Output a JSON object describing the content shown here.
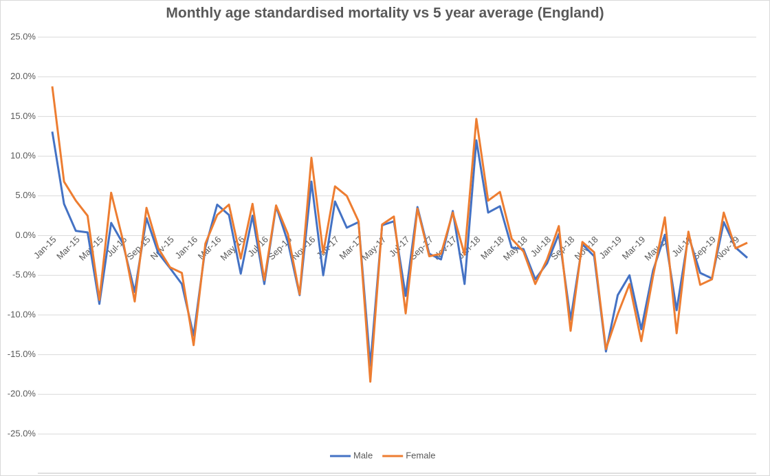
{
  "chart_data": {
    "type": "line",
    "title": "Monthly age standardised mortality vs 5 year average (England)",
    "categories": [
      "Jan-15",
      null,
      "Mar-15",
      null,
      "May-15",
      null,
      "Jul-15",
      null,
      "Sep-15",
      null,
      "Nov-15",
      null,
      "Jan-16",
      null,
      "Mar-16",
      null,
      "May-16",
      null,
      "Jul-16",
      null,
      "Sep-16",
      null,
      "Nov-16",
      null,
      "Jan-17",
      null,
      "Mar-17",
      null,
      "May-17",
      null,
      "Jul-17",
      null,
      "Sep-17",
      null,
      "Nov-17",
      null,
      "Jan-18",
      null,
      "Mar-18",
      null,
      "May-18",
      null,
      "Jul-18",
      null,
      "Sep-18",
      null,
      "Nov-18",
      null,
      "Jan-19",
      null,
      "Mar-19",
      null,
      "May-19",
      null,
      "Jul-19",
      null,
      "Sep-19",
      null,
      "Nov-19",
      null
    ],
    "series": [
      {
        "name": "Male",
        "color": "#4472c4",
        "values": [
          13.1,
          4.0,
          0.6,
          0.4,
          -8.6,
          1.6,
          -1.0,
          -7.1,
          2.2,
          -2.2,
          -4.1,
          -6.1,
          -12.6,
          -1.5,
          3.9,
          2.6,
          -4.8,
          2.5,
          -6.1,
          3.7,
          -0.8,
          -7.5,
          6.8,
          -5.0,
          4.3,
          1.0,
          1.7,
          -16.4,
          1.3,
          1.8,
          -7.6,
          3.6,
          -2.3,
          -3.0,
          3.1,
          -6.1,
          12.0,
          2.9,
          3.7,
          -1.5,
          -1.7,
          -5.5,
          -3.5,
          0.2,
          -10.6,
          -1.1,
          -2.6,
          -14.6,
          -7.5,
          -5.0,
          -11.8,
          -4.4,
          0.1,
          -9.4,
          0.0,
          -4.7,
          -5.4,
          1.7,
          -1.5,
          -2.8
        ]
      },
      {
        "name": "Female",
        "color": "#ed7d31",
        "values": [
          18.8,
          6.8,
          4.4,
          2.5,
          -8.1,
          5.4,
          -0.6,
          -8.3,
          3.5,
          -1.6,
          -4.0,
          -4.7,
          -13.8,
          -1.0,
          2.6,
          3.9,
          -2.9,
          4.0,
          -5.6,
          3.8,
          0.2,
          -7.4,
          9.8,
          -2.2,
          6.2,
          5.0,
          1.8,
          -18.4,
          1.4,
          2.4,
          -9.8,
          3.4,
          -2.6,
          -2.3,
          2.9,
          -2.4,
          14.7,
          4.4,
          5.5,
          -0.4,
          -2.0,
          -6.1,
          -3.0,
          1.2,
          -12.0,
          -0.8,
          -2.1,
          -14.3,
          -9.9,
          -6.1,
          -13.3,
          -5.1,
          2.3,
          -12.3,
          0.5,
          -6.2,
          -5.5,
          2.9,
          -1.6,
          -0.9
        ]
      }
    ],
    "ylim": [
      -25,
      25
    ],
    "yticks": [
      {
        "value": -25,
        "label": "-25.0%"
      },
      {
        "value": -20,
        "label": "-20.0%"
      },
      {
        "value": -15,
        "label": "-15.0%"
      },
      {
        "value": -10,
        "label": "-10.0%"
      },
      {
        "value": -5,
        "label": "-5.0%"
      },
      {
        "value": 0,
        "label": "0.0%"
      },
      {
        "value": 5,
        "label": "5.0%"
      },
      {
        "value": 10,
        "label": "10.0%"
      },
      {
        "value": 15,
        "label": "15.0%"
      },
      {
        "value": 20,
        "label": "20.0%"
      },
      {
        "value": 25,
        "label": "25.0%"
      }
    ],
    "grid": true,
    "legend": "bottom"
  }
}
